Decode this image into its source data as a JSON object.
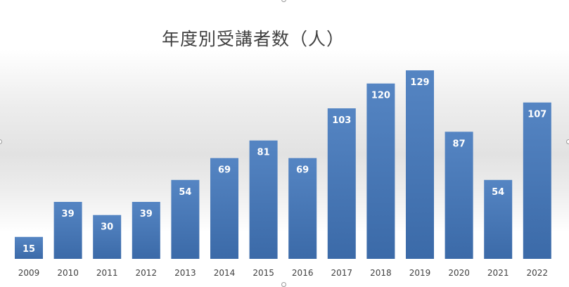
{
  "chart_data": {
    "type": "bar",
    "title": "年度別受講者数（人）",
    "categories": [
      "2009",
      "2010",
      "2011",
      "2012",
      "2013",
      "2014",
      "2015",
      "2016",
      "2017",
      "2018",
      "2019",
      "2020",
      "2021",
      "2022"
    ],
    "series": [
      {
        "values": [
          15,
          39,
          30,
          39,
          54,
          69,
          81,
          69,
          103,
          120,
          129,
          87,
          54,
          107
        ]
      }
    ],
    "xlabel": "",
    "ylabel": "",
    "ylim": [
      0,
      142
    ],
    "grid": false,
    "legend": "none",
    "data_labels": true,
    "colors": {
      "bar_top": "#5585c3",
      "bar_bottom": "#3b6aa8",
      "label": "#ffffff",
      "tick": "#404040"
    }
  }
}
